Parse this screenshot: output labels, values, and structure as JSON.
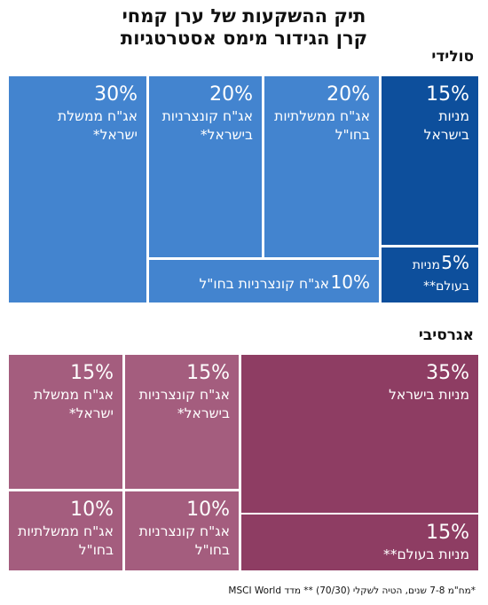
{
  "title_line1": "תיק ההשקעות של ערן קמחי",
  "title_line2": "קרן הגידור מימס אסטרטגיות",
  "footnote": "*מח\"מ 7-8 שנים, הטיה לשקלי (70/30) ** מדד MSCI World",
  "chart_data": [
    {
      "type": "treemap",
      "title": "סולידי",
      "tiles": [
        {
          "value": 15,
          "pct": "15%",
          "lines": [
            "מניות",
            "בישראל"
          ],
          "color": "#0d4f9c"
        },
        {
          "value": 5,
          "pct": "5%",
          "lines": [
            "מניות",
            "בעולם**"
          ],
          "color": "#0d4f9c"
        },
        {
          "value": 20,
          "pct": "20%",
          "lines": [
            "אג\"ח ממשלתיות",
            "בחו\"ל"
          ],
          "color": "#4384cf"
        },
        {
          "value": 20,
          "pct": "20%",
          "lines": [
            "אג\"ח קונצרניות",
            "בישראל*"
          ],
          "color": "#4384cf"
        },
        {
          "value": 10,
          "pct": "10%",
          "lines": [
            "אג\"ח קונצרניות בחו\"ל"
          ],
          "color": "#4384cf"
        },
        {
          "value": 30,
          "pct": "30%",
          "lines": [
            "אג\"ח ממשלת",
            "ישראל*"
          ],
          "color": "#4384cf"
        }
      ]
    },
    {
      "type": "treemap",
      "title": "אגרסיבי",
      "tiles": [
        {
          "value": 35,
          "pct": "35%",
          "lines": [
            "מניות בישראל"
          ],
          "color": "#8e3d63"
        },
        {
          "value": 15,
          "pct": "15%",
          "lines": [
            "מניות בעולם**"
          ],
          "color": "#8e3d63"
        },
        {
          "value": 15,
          "pct": "15%",
          "lines": [
            "אג\"ח קונצרניות",
            "בישראל*"
          ],
          "color": "#a45d7e"
        },
        {
          "value": 10,
          "pct": "10%",
          "lines": [
            "אג\"ח קונצרניות",
            "בחו\"ל"
          ],
          "color": "#a45d7e"
        },
        {
          "value": 15,
          "pct": "15%",
          "lines": [
            "אג\"ח ממשלת",
            "ישראל*"
          ],
          "color": "#a45d7e"
        },
        {
          "value": 10,
          "pct": "10%",
          "lines": [
            "אג\"ח ממשלתיות",
            "בחו\"ל"
          ],
          "color": "#a45d7e"
        }
      ]
    }
  ]
}
